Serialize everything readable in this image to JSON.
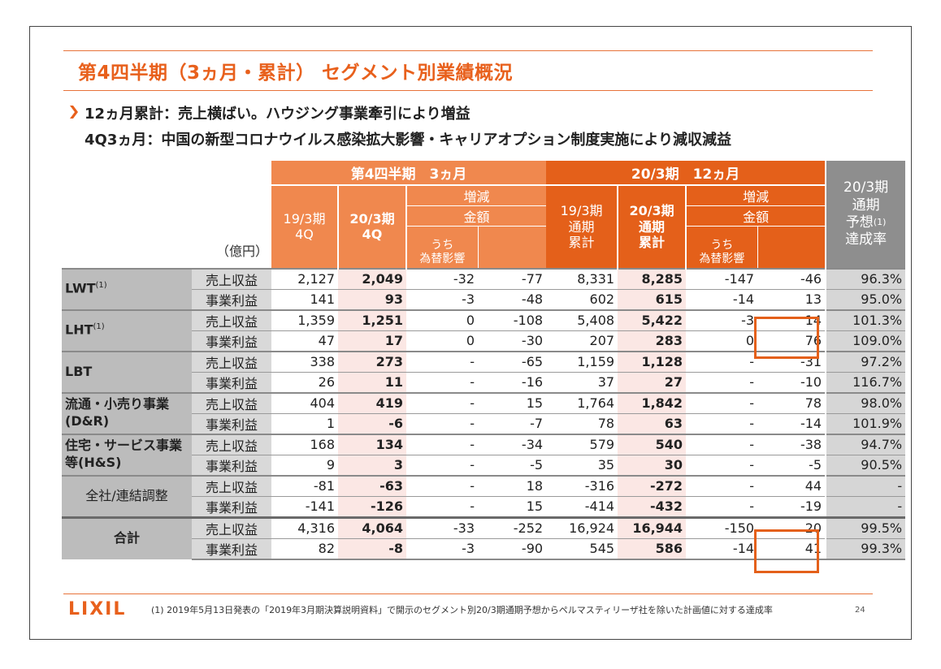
{
  "title": "第4四半期（3ヵ月・累計） セグメント別業績概況",
  "subtitle_line1": "12ヵ月累計：売上横ばい。ハウジング事業牽引により増益",
  "subtitle_line2": "4Q3ヵ月：中国の新型コロナウイルス感染拡大影響・キャリアオプション制度実施により減収減益",
  "colors": {
    "accent": "#e8601c",
    "q_header": "#f0884e",
    "y_header": "#e4601a",
    "gray_header": "#8e8e8e",
    "highlight_fill": "#fbe7e4"
  },
  "header": {
    "unit": "（億円）",
    "quarter_group": "第4四半期　3ヵ月",
    "year_group": "20/3期　12ヵ月",
    "forecast_col": [
      "20/3期",
      "通期",
      "予想",
      "達成率"
    ],
    "forecast_sup": "(1)",
    "q_prev": [
      "19/3期",
      "4Q"
    ],
    "q_curr": [
      "20/3期",
      "4Q"
    ],
    "y_prev": [
      "19/3期",
      "通期",
      "累計"
    ],
    "y_curr": [
      "20/3期",
      "通期",
      "累計"
    ],
    "change": "増減",
    "amount": "金額",
    "fx": [
      "うち",
      "為替影響"
    ]
  },
  "metrics": {
    "sales": "売上収益",
    "profit": "事業利益"
  },
  "segments": [
    {
      "name": "LWT",
      "sup": "(1)",
      "rows": [
        [
          "2,127",
          "2,049",
          "-32",
          "-77",
          "8,331",
          "8,285",
          "-147",
          "-46",
          "96.3%"
        ],
        [
          "141",
          "93",
          "-3",
          "-48",
          "602",
          "615",
          "-14",
          "13",
          "95.0%"
        ]
      ]
    },
    {
      "name": "LHT",
      "sup": "(1)",
      "rows": [
        [
          "1,359",
          "1,251",
          "0",
          "-108",
          "5,408",
          "5,422",
          "-3",
          "14",
          "101.3%"
        ],
        [
          "47",
          "17",
          "0",
          "-30",
          "207",
          "283",
          "0",
          "76",
          "109.0%"
        ]
      ]
    },
    {
      "name": "LBT",
      "sup": "",
      "rows": [
        [
          "338",
          "273",
          "-",
          "-65",
          "1,159",
          "1,128",
          "-",
          "-31",
          "97.2%"
        ],
        [
          "26",
          "11",
          "-",
          "-16",
          "37",
          "27",
          "-",
          "-10",
          "116.7%"
        ]
      ]
    },
    {
      "name_line1": "流通・小売り事業",
      "name_line2": "(D&R)",
      "rows": [
        [
          "404",
          "419",
          "-",
          "15",
          "1,764",
          "1,842",
          "-",
          "78",
          "98.0%"
        ],
        [
          "1",
          "-6",
          "-",
          "-7",
          "78",
          "63",
          "-",
          "-14",
          "101.9%"
        ]
      ]
    },
    {
      "name_line1": "住宅・サービス事業",
      "name_line2": "等(H&S)",
      "rows": [
        [
          "168",
          "134",
          "-",
          "-34",
          "579",
          "540",
          "-",
          "-38",
          "94.7%"
        ],
        [
          "9",
          "3",
          "-",
          "-5",
          "35",
          "30",
          "-",
          "-5",
          "90.5%"
        ]
      ]
    },
    {
      "name": "全社/連結調整",
      "rows": [
        [
          "-81",
          "-63",
          "-",
          "18",
          "-316",
          "-272",
          "-",
          "44",
          "-"
        ],
        [
          "-141",
          "-126",
          "-",
          "15",
          "-414",
          "-432",
          "-",
          "-19",
          "-"
        ]
      ]
    },
    {
      "name": "合計",
      "rows": [
        [
          "4,316",
          "4,064",
          "-33",
          "-252",
          "16,924",
          "16,944",
          "-150",
          "20",
          "99.5%"
        ],
        [
          "82",
          "-8",
          "-3",
          "-90",
          "545",
          "586",
          "-14",
          "41",
          "99.3%"
        ]
      ]
    }
  ],
  "footer": {
    "logo": "LIXIL",
    "note": "(1)  2019年5月13日発表の「2019年3月期決算説明資料」で開示のセグメント別20/3期通期予想からペルマスティリーザ社を除いた計画値に対する達成率",
    "page": "24"
  }
}
